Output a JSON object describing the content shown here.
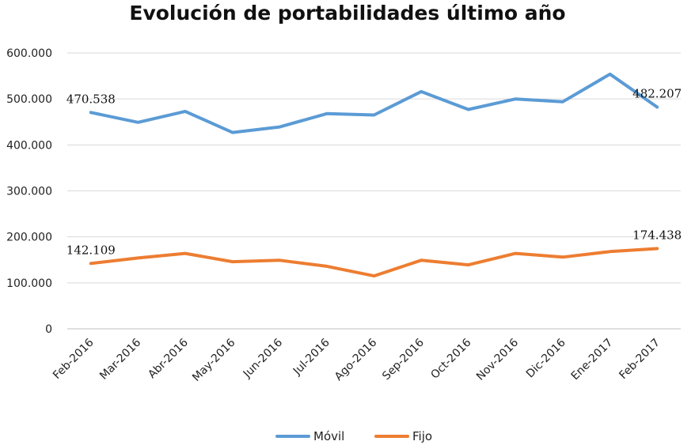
{
  "chart_data": {
    "type": "line",
    "title": "Evolución de portabilidades último año",
    "xlabel": "",
    "ylabel": "",
    "categories": [
      "Feb-2016",
      "Mar-2016",
      "Abr-2016",
      "May-2016",
      "Jun-2016",
      "Jul-2016",
      "Ago-2016",
      "Sep-2016",
      "Oct-2016",
      "Nov-2016",
      "Dic-2016",
      "Ene-2017",
      "Feb-2017"
    ],
    "y_ticks": [
      "0",
      "100.000",
      "200.000",
      "300.000",
      "400.000",
      "500.000",
      "600.000"
    ],
    "ylim": [
      0,
      600000
    ],
    "grid": true,
    "legend_position": "bottom",
    "series": [
      {
        "name": "Móvil",
        "color": "#5b9bd5",
        "values": [
          470538,
          449000,
          473000,
          427000,
          439000,
          468000,
          465000,
          516000,
          477000,
          500000,
          494000,
          554000,
          482207
        ],
        "data_labels": [
          "470.538",
          "",
          "",
          "",
          "",
          "",
          "",
          "",
          "",
          "",
          "",
          "",
          "482.207"
        ]
      },
      {
        "name": "Fijo",
        "color": "#ed7d31",
        "values": [
          142109,
          154000,
          164000,
          146000,
          149000,
          136000,
          115000,
          149000,
          139000,
          164000,
          156000,
          168000,
          174438
        ],
        "data_labels": [
          "142.109",
          "",
          "",
          "",
          "",
          "",
          "",
          "",
          "",
          "",
          "",
          "",
          "174.438"
        ]
      }
    ]
  }
}
